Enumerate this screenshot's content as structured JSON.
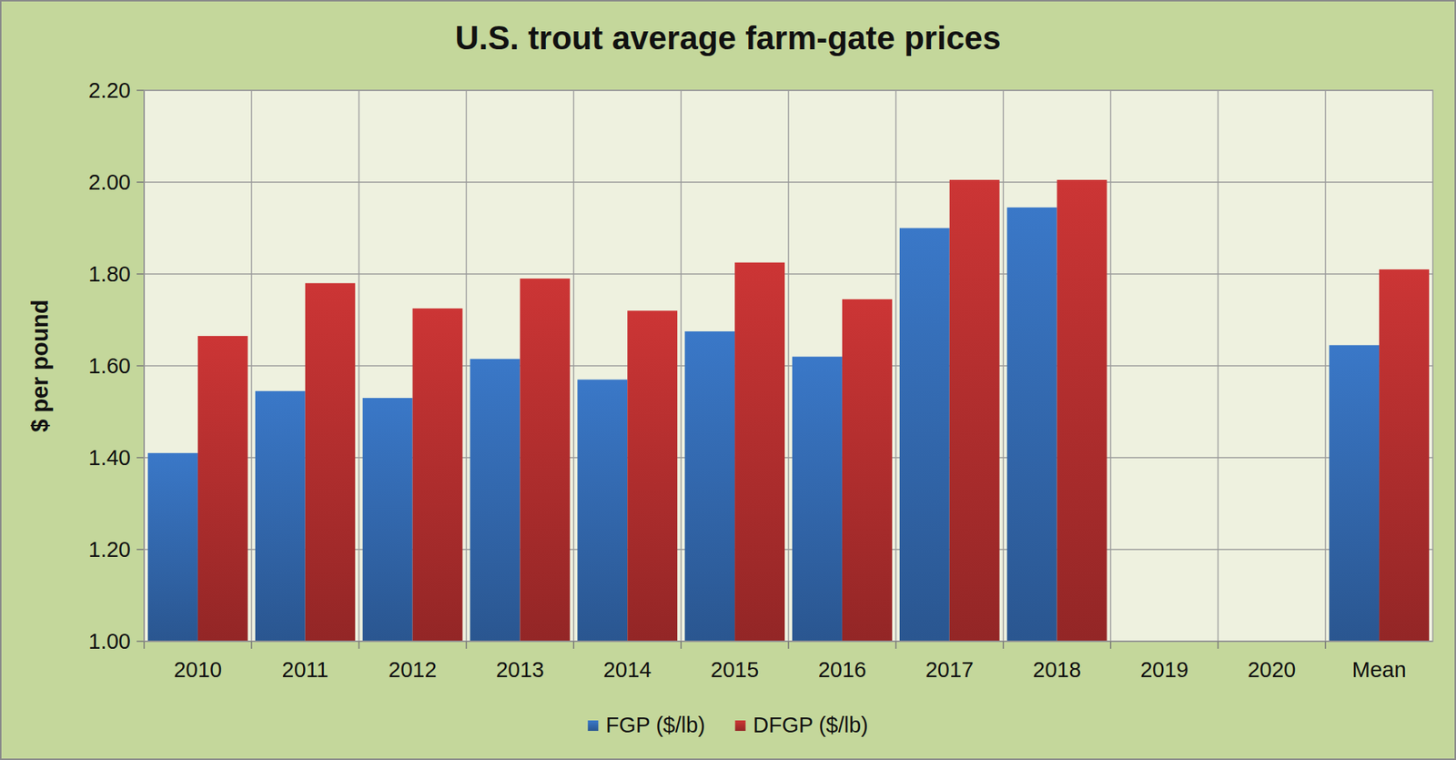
{
  "chart_data": {
    "type": "bar",
    "title": "U.S. trout average farm-gate prices",
    "y_label": "$ per pound",
    "categories": [
      "2010",
      "2011",
      "2012",
      "2013",
      "2014",
      "2015",
      "2016",
      "2017",
      "2018",
      "2019",
      "2020",
      "Mean"
    ],
    "series": [
      {
        "name": "FGP ($/lb)",
        "color": "#3a78c8",
        "values": [
          1.41,
          1.545,
          1.53,
          1.615,
          1.57,
          1.675,
          1.62,
          1.9,
          1.945,
          null,
          null,
          1.645
        ]
      },
      {
        "name": "DFGP ($/lb)",
        "color": "#cc3535",
        "values": [
          1.665,
          1.78,
          1.725,
          1.79,
          1.72,
          1.825,
          1.745,
          2.005,
          2.005,
          null,
          null,
          1.81
        ]
      }
    ],
    "ylim": [
      1.0,
      2.2
    ],
    "yticks": [
      {
        "value": 1.0,
        "label": "1.00"
      },
      {
        "value": 1.2,
        "label": "1.20"
      },
      {
        "value": 1.4,
        "label": "1.40"
      },
      {
        "value": 1.6,
        "label": "1.60"
      },
      {
        "value": 1.8,
        "label": "1.80"
      },
      {
        "value": 2.0,
        "label": "2.00"
      },
      {
        "value": 2.2,
        "label": "2.20"
      }
    ],
    "grid": true,
    "legend": "bottom"
  }
}
